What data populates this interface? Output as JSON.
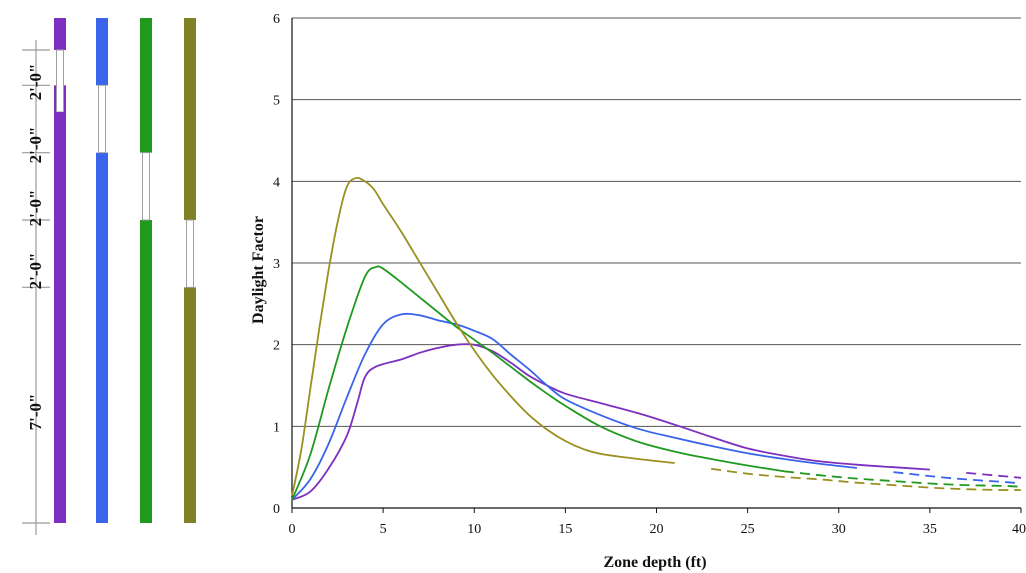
{
  "section_diagram": {
    "dimension_labels": [
      "2'-0\"",
      "2'-0\"",
      "2'-0\"",
      "2'-0\"",
      "7'-0\""
    ],
    "dimension_segments_ft": [
      2,
      2,
      2,
      2,
      7
    ],
    "wall_height_ft": 15,
    "walls": [
      {
        "color": "#7d2fbf",
        "window_ft": [
          13,
          15
        ],
        "lower_window_ft": [
          15,
          15
        ]
      },
      {
        "color": "#3a64ea",
        "window_ft": [
          11,
          13
        ]
      },
      {
        "color": "#1f9a1f",
        "window_ft": [
          9,
          11
        ]
      },
      {
        "color": "#7e8126",
        "window_ft": [
          7,
          9
        ]
      }
    ]
  },
  "chart_data": {
    "type": "line",
    "title": "",
    "xlabel": "Zone depth (ft)",
    "ylabel": "Daylight Factor",
    "xlim": [
      0,
      40
    ],
    "ylim": [
      0,
      6
    ],
    "x_ticks": [
      "0",
      "5",
      "10",
      "15",
      "20",
      "25",
      "30",
      "35",
      "40"
    ],
    "y_ticks": [
      "0",
      "1",
      "2",
      "3",
      "4",
      "5",
      "6"
    ],
    "grid": "horizontal",
    "legend": "none",
    "series": [
      {
        "color": "#7d2fbf",
        "solid_until": 36,
        "points": [
          [
            0,
            0.1
          ],
          [
            1,
            0.2
          ],
          [
            2,
            0.48
          ],
          [
            3,
            0.88
          ],
          [
            3.6,
            1.3
          ],
          [
            4,
            1.6
          ],
          [
            4.6,
            1.73
          ],
          [
            6,
            1.82
          ],
          [
            7,
            1.9
          ],
          [
            8,
            1.96
          ],
          [
            9,
            2.0
          ],
          [
            10,
            2.0
          ],
          [
            11,
            1.92
          ],
          [
            12,
            1.78
          ],
          [
            13,
            1.62
          ],
          [
            14,
            1.5
          ],
          [
            15,
            1.4
          ],
          [
            17,
            1.28
          ],
          [
            19,
            1.16
          ],
          [
            21,
            1.02
          ],
          [
            23,
            0.87
          ],
          [
            25,
            0.73
          ],
          [
            27,
            0.64
          ],
          [
            29,
            0.57
          ],
          [
            31,
            0.53
          ],
          [
            33,
            0.5
          ],
          [
            35,
            0.47
          ],
          [
            37,
            0.43
          ],
          [
            39,
            0.39
          ],
          [
            40,
            0.37
          ]
        ]
      },
      {
        "color": "#3a64ea",
        "solid_until": 32,
        "points": [
          [
            0,
            0.1
          ],
          [
            1,
            0.35
          ],
          [
            2,
            0.78
          ],
          [
            3,
            1.35
          ],
          [
            4,
            1.88
          ],
          [
            5,
            2.25
          ],
          [
            6,
            2.37
          ],
          [
            7,
            2.36
          ],
          [
            8,
            2.3
          ],
          [
            9,
            2.25
          ],
          [
            10,
            2.17
          ],
          [
            11,
            2.07
          ],
          [
            12,
            1.88
          ],
          [
            13,
            1.7
          ],
          [
            14,
            1.5
          ],
          [
            15,
            1.33
          ],
          [
            17,
            1.13
          ],
          [
            19,
            0.97
          ],
          [
            21,
            0.86
          ],
          [
            23,
            0.76
          ],
          [
            25,
            0.67
          ],
          [
            27,
            0.6
          ],
          [
            29,
            0.54
          ],
          [
            31,
            0.49
          ],
          [
            33,
            0.44
          ],
          [
            35,
            0.39
          ],
          [
            37,
            0.35
          ],
          [
            39,
            0.32
          ],
          [
            40,
            0.3
          ]
        ]
      },
      {
        "color": "#1f9a1f",
        "solid_until": 27,
        "points": [
          [
            0,
            0.1
          ],
          [
            1,
            0.65
          ],
          [
            2,
            1.45
          ],
          [
            3,
            2.2
          ],
          [
            4,
            2.83
          ],
          [
            4.6,
            2.95
          ],
          [
            5,
            2.93
          ],
          [
            6,
            2.76
          ],
          [
            7,
            2.58
          ],
          [
            8,
            2.4
          ],
          [
            9,
            2.22
          ],
          [
            10,
            2.06
          ],
          [
            11,
            1.9
          ],
          [
            12,
            1.73
          ],
          [
            13,
            1.56
          ],
          [
            14,
            1.4
          ],
          [
            15,
            1.25
          ],
          [
            17,
            0.99
          ],
          [
            19,
            0.81
          ],
          [
            21,
            0.69
          ],
          [
            23,
            0.6
          ],
          [
            25,
            0.52
          ],
          [
            27,
            0.45
          ],
          [
            29,
            0.4
          ],
          [
            31,
            0.36
          ],
          [
            33,
            0.33
          ],
          [
            35,
            0.3
          ],
          [
            37,
            0.28
          ],
          [
            39,
            0.27
          ],
          [
            40,
            0.26
          ]
        ]
      },
      {
        "color": "#9a9020",
        "solid_until": 22,
        "points": [
          [
            0,
            0.15
          ],
          [
            0.5,
            0.7
          ],
          [
            1,
            1.45
          ],
          [
            1.5,
            2.2
          ],
          [
            2,
            2.9
          ],
          [
            2.5,
            3.5
          ],
          [
            3,
            3.93
          ],
          [
            3.5,
            4.04
          ],
          [
            4,
            4.0
          ],
          [
            4.5,
            3.9
          ],
          [
            5,
            3.72
          ],
          [
            6,
            3.38
          ],
          [
            7,
            3.01
          ],
          [
            8,
            2.64
          ],
          [
            9,
            2.27
          ],
          [
            10,
            1.93
          ],
          [
            11,
            1.63
          ],
          [
            12,
            1.37
          ],
          [
            13,
            1.14
          ],
          [
            14,
            0.96
          ],
          [
            15,
            0.82
          ],
          [
            16,
            0.72
          ],
          [
            17,
            0.66
          ],
          [
            19,
            0.6
          ],
          [
            21,
            0.55
          ],
          [
            23,
            0.48
          ],
          [
            25,
            0.42
          ],
          [
            27,
            0.38
          ],
          [
            29,
            0.35
          ],
          [
            31,
            0.31
          ],
          [
            33,
            0.28
          ],
          [
            35,
            0.25
          ],
          [
            37,
            0.23
          ],
          [
            39,
            0.22
          ],
          [
            40,
            0.22
          ]
        ]
      }
    ]
  }
}
